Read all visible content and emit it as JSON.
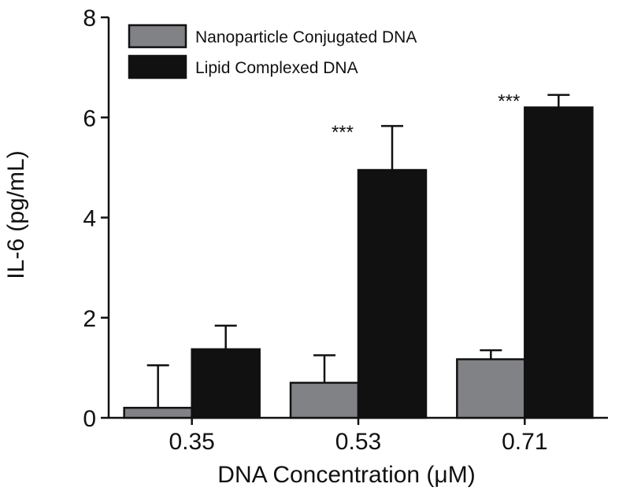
{
  "chart_data": {
    "type": "bar",
    "title": "",
    "xlabel": "DNA Concentration (μM)",
    "ylabel": "IL-6 (pg/mL)",
    "ylim": [
      0,
      8
    ],
    "yticks": [
      0,
      2,
      4,
      6,
      8
    ],
    "categories": [
      "0.35",
      "0.53",
      "0.71"
    ],
    "series": [
      {
        "name": "Nanoparticle Conjugated DNA",
        "color": "#808285",
        "values": [
          0.2,
          0.7,
          1.17
        ],
        "errors": [
          0.85,
          0.55,
          0.18
        ]
      },
      {
        "name": "Lipid Complexed DNA",
        "color": "#111111",
        "values": [
          1.37,
          4.95,
          6.2
        ],
        "errors": [
          0.47,
          0.88,
          0.25
        ]
      }
    ],
    "annotations": [
      {
        "category": "0.53",
        "series": "Lipid Complexed DNA",
        "text": "***"
      },
      {
        "category": "0.71",
        "series": "Lipid Complexed DNA",
        "text": "***"
      }
    ],
    "legend_position": "top-left",
    "grid": false
  }
}
